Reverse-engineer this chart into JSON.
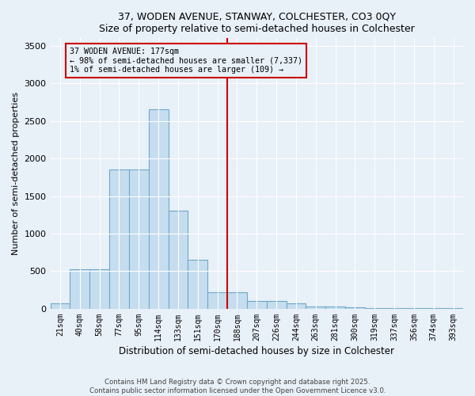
{
  "title": "37, WODEN AVENUE, STANWAY, COLCHESTER, CO3 0QY",
  "subtitle": "Size of property relative to semi-detached houses in Colchester",
  "xlabel": "Distribution of semi-detached houses by size in Colchester",
  "ylabel": "Number of semi-detached properties",
  "annotation_title": "37 WODEN AVENUE: 177sqm",
  "annotation_line1": "← 98% of semi-detached houses are smaller (7,337)",
  "annotation_line2": "1% of semi-detached houses are larger (109) →",
  "bar_color": "#c5ddef",
  "bar_edge_color": "#6fa8c8",
  "vline_color": "#cc0000",
  "categories": [
    "21sqm",
    "40sqm",
    "58sqm",
    "77sqm",
    "95sqm",
    "114sqm",
    "133sqm",
    "151sqm",
    "170sqm",
    "188sqm",
    "207sqm",
    "226sqm",
    "244sqm",
    "263sqm",
    "281sqm",
    "300sqm",
    "319sqm",
    "337sqm",
    "356sqm",
    "374sqm",
    "393sqm"
  ],
  "values": [
    75,
    530,
    530,
    1850,
    1850,
    2650,
    1310,
    650,
    225,
    225,
    100,
    100,
    75,
    30,
    30,
    20,
    10,
    10,
    5,
    5,
    5
  ],
  "ylim": [
    0,
    3600
  ],
  "yticks": [
    0,
    500,
    1000,
    1500,
    2000,
    2500,
    3000,
    3500
  ],
  "vline_x_index": 8.5,
  "footer_line1": "Contains HM Land Registry data © Crown copyright and database right 2025.",
  "footer_line2": "Contains public sector information licensed under the Open Government Licence v3.0.",
  "bg_color": "#e8f0f8",
  "grid_color": "#d0dce8"
}
